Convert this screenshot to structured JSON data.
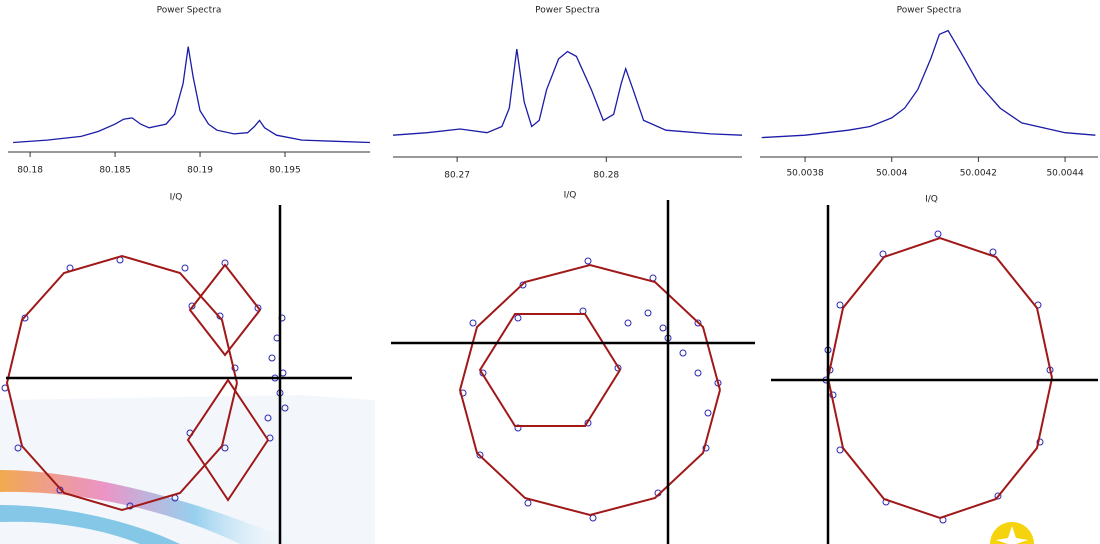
{
  "chart_data": [
    {
      "type": "line",
      "title": "Power Spectra",
      "color": "#1c1ca8",
      "x": [
        80.179,
        80.181,
        80.183,
        80.184,
        80.185,
        80.1855,
        80.186,
        80.1865,
        80.187,
        80.188,
        80.1885,
        80.189,
        80.1893,
        80.1896,
        80.19,
        80.1905,
        80.191,
        80.192,
        80.1928,
        80.1932,
        80.1935,
        80.1938,
        80.1945,
        80.196,
        80.198,
        80.2
      ],
      "values": [
        0.02,
        0.04,
        0.07,
        0.11,
        0.17,
        0.21,
        0.22,
        0.17,
        0.14,
        0.17,
        0.25,
        0.5,
        0.8,
        0.55,
        0.28,
        0.17,
        0.12,
        0.09,
        0.1,
        0.15,
        0.2,
        0.14,
        0.08,
        0.04,
        0.03,
        0.02
      ],
      "xlim": [
        80.1787,
        80.2
      ],
      "ylim": [
        0,
        1
      ],
      "xticks": [
        80.18,
        80.185,
        80.19,
        80.195
      ]
    },
    {
      "type": "line",
      "title": "Power Spectra",
      "color": "#1c1ca8",
      "x": [
        80.2657,
        80.268,
        80.2702,
        80.272,
        80.273,
        80.2735,
        80.274,
        80.2745,
        80.275,
        80.2755,
        80.276,
        80.2768,
        80.2774,
        80.278,
        80.279,
        80.2798,
        80.2805,
        80.281,
        80.2813,
        80.2818,
        80.2825,
        80.284,
        80.287,
        80.2891
      ],
      "values": [
        0.08,
        0.1,
        0.13,
        0.1,
        0.15,
        0.3,
        0.78,
        0.35,
        0.15,
        0.2,
        0.45,
        0.7,
        0.76,
        0.72,
        0.45,
        0.2,
        0.25,
        0.5,
        0.62,
        0.45,
        0.2,
        0.12,
        0.09,
        0.08
      ],
      "xlim": [
        80.2657,
        80.2891
      ],
      "ylim": [
        0,
        1
      ],
      "xticks": [
        80.27,
        80.28
      ]
    },
    {
      "type": "line",
      "title": "Power Spectra",
      "color": "#1c1ca8",
      "x": [
        50.0037,
        50.0038,
        50.0039,
        50.00395,
        50.004,
        50.00403,
        50.00406,
        50.00409,
        50.00411,
        50.00413,
        50.00416,
        50.0042,
        50.00425,
        50.0043,
        50.0044,
        50.00447
      ],
      "values": [
        0.06,
        0.08,
        0.12,
        0.15,
        0.22,
        0.3,
        0.45,
        0.7,
        0.9,
        0.93,
        0.75,
        0.5,
        0.3,
        0.18,
        0.1,
        0.08
      ],
      "xlim": [
        50.003696,
        50.004476
      ],
      "ylim": [
        0,
        1
      ],
      "xticks": [
        50.0038,
        50.004,
        50.0042,
        50.0044
      ]
    },
    {
      "type": "iq",
      "title": "I/Q",
      "xlim": [
        -280,
        72
      ],
      "ylim": [
        -166,
        173
      ],
      "series": [
        {
          "mode": "markers",
          "color": "#2a2ab0",
          "x": [
            -45,
            -60,
            -95,
            -160,
            -210,
            -255,
            -275,
            -262,
            -220,
            -150,
            -105,
            -55,
            -22,
            -88,
            -55,
            -10,
            -90,
            -5,
            3,
            -8,
            0,
            -3,
            5,
            -12,
            2
          ],
          "y": [
            10,
            62,
            110,
            118,
            110,
            60,
            -10,
            -70,
            -112,
            -128,
            -120,
            -70,
            70,
            72,
            115,
            -60,
            -55,
            0,
            5,
            20,
            -15,
            40,
            -30,
            -40,
            60
          ]
        },
        {
          "mode": "line",
          "color": "#a01818",
          "x": [
            -43,
            -58,
            -100,
            -158,
            -216,
            -258,
            -273,
            -258,
            -216,
            -158,
            -100,
            -58,
            -43
          ],
          "y": [
            -5,
            58,
            105,
            122,
            105,
            58,
            -5,
            -68,
            -115,
            -132,
            -115,
            -68,
            -5
          ]
        },
        {
          "mode": "line",
          "color": "#a01818",
          "x": [
            -20,
            -55,
            -90,
            -55,
            -20
          ],
          "y": [
            68,
            113,
            68,
            23,
            68
          ]
        },
        {
          "mode": "line",
          "color": "#a01818",
          "x": [
            -12,
            -52,
            -92,
            -52,
            -12
          ],
          "y": [
            -62,
            -2,
            -62,
            -122,
            -62
          ]
        }
      ]
    },
    {
      "type": "iq",
      "title": "I/Q",
      "xlim": [
        -283,
        87
      ],
      "ylim": [
        -201,
        143
      ],
      "series": [
        {
          "mode": "markers",
          "color": "#2a2ab0",
          "x": [
            50,
            30,
            -15,
            -80,
            -145,
            -195,
            -205,
            -188,
            -140,
            -75,
            -10,
            38,
            -50,
            -85,
            -150,
            -185,
            -150,
            -80,
            -40,
            -20,
            0,
            15,
            30,
            -5,
            40
          ],
          "y": [
            -40,
            20,
            65,
            82,
            58,
            20,
            -50,
            -112,
            -160,
            -175,
            -150,
            -105,
            -25,
            32,
            25,
            -30,
            -85,
            -80,
            20,
            30,
            5,
            -10,
            -30,
            15,
            -70
          ]
        },
        {
          "mode": "line",
          "color": "#a01818",
          "x": [
            52,
            35,
            -13,
            -78,
            -143,
            -191,
            -208,
            -191,
            -143,
            -78,
            -13,
            35,
            52
          ],
          "y": [
            -47,
            16,
            61,
            78,
            61,
            16,
            -47,
            -110,
            -155,
            -172,
            -155,
            -110,
            -47
          ]
        },
        {
          "mode": "line",
          "color": "#a01818",
          "x": [
            -48,
            -83,
            -153,
            -188,
            -153,
            -83,
            -48
          ],
          "y": [
            -27,
            29,
            29,
            -27,
            -83,
            -83,
            -27
          ]
        }
      ]
    },
    {
      "type": "iq",
      "title": "I/Q",
      "xlim": [
        -63,
        270
      ],
      "ylim": [
        -164,
        175
      ],
      "series": [
        {
          "mode": "markers",
          "color": "#2a2ab0",
          "x": [
            222,
            210,
            165,
            110,
            55,
            12,
            -2,
            12,
            58,
            115,
            170,
            212,
            2,
            5,
            0
          ],
          "y": [
            10,
            75,
            128,
            146,
            126,
            75,
            0,
            -70,
            -122,
            -140,
            -116,
            -62,
            10,
            -15,
            30
          ]
        },
        {
          "mode": "line",
          "color": "#a01818",
          "x": [
            224,
            209,
            168,
            112,
            56,
            15,
            0,
            15,
            56,
            112,
            168,
            209,
            224
          ],
          "y": [
            2,
            72,
            123,
            142,
            123,
            72,
            2,
            -68,
            -119,
            -138,
            -119,
            -68,
            2
          ]
        }
      ]
    }
  ]
}
